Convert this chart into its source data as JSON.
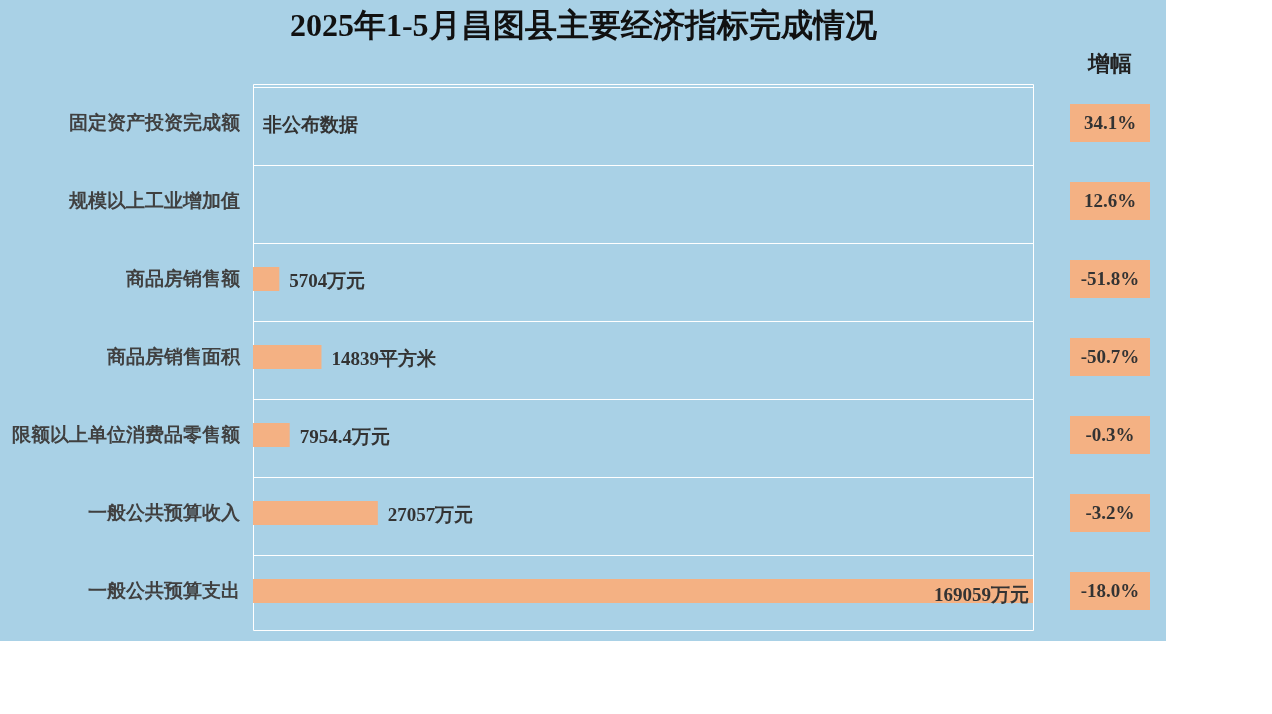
{
  "chart_data": [
    {
      "type": "bar",
      "orientation": "horizontal",
      "title": "2025年1-5月昌图县主要经济指标完成情况",
      "categories": [
        "固定资产投资完成额",
        "规模以上工业增加值",
        "商品房销售额",
        "商品房销售面积",
        "限额以上单位消费品零售额",
        "一般公共预算收入",
        "一般公共预算支出"
      ],
      "values": [
        null,
        null,
        5704,
        14839,
        7954.4,
        27057,
        169059
      ],
      "value_labels": [
        "非公布数据",
        null,
        "5704万元",
        "14839平方米",
        "7954.4万元",
        "27057万元",
        "169059万元"
      ],
      "color": "#f4b183",
      "grid": "y"
    },
    {
      "type": "other",
      "title": "增幅",
      "categories": [
        null,
        null,
        null,
        null,
        null,
        null,
        null
      ],
      "values": [
        34.1,
        12.6,
        -51.8,
        -50.7,
        -0.3,
        -3.2,
        -18.0
      ],
      "value_labels": [
        "34.1%",
        "12.6%",
        "-51.8%",
        "-50.7%",
        "-0.3%",
        "-3.2%",
        "-18.0%"
      ],
      "color": "#f4b183"
    }
  ]
}
